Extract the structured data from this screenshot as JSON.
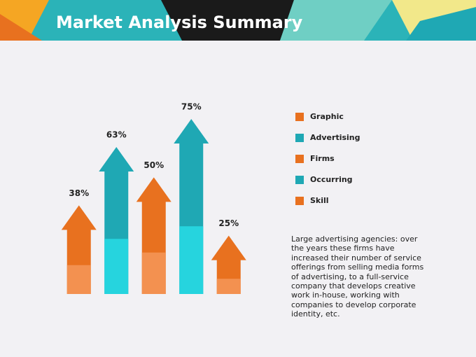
{
  "chart_data": {
    "type": "arrow-bar",
    "title": "Market Analysis Summary",
    "categories": [
      "Graphic",
      "Advertising",
      "Firms",
      "Occurring",
      "Skill"
    ],
    "values": [
      38,
      63,
      50,
      75,
      25
    ],
    "value_labels": [
      "38%",
      "63%",
      "50%",
      "75%",
      "25%"
    ],
    "colors": [
      "#e8711f",
      "#1fa8b4",
      "#e8711f",
      "#1fa8b4",
      "#e8711f"
    ],
    "annotation": "Large advertising agencies: over the years these firms have increased their number of service offerings from selling media forms of advertising, to a full-service company that develops creative work in-house, working with companies to develop corporate identity, etc."
  }
}
